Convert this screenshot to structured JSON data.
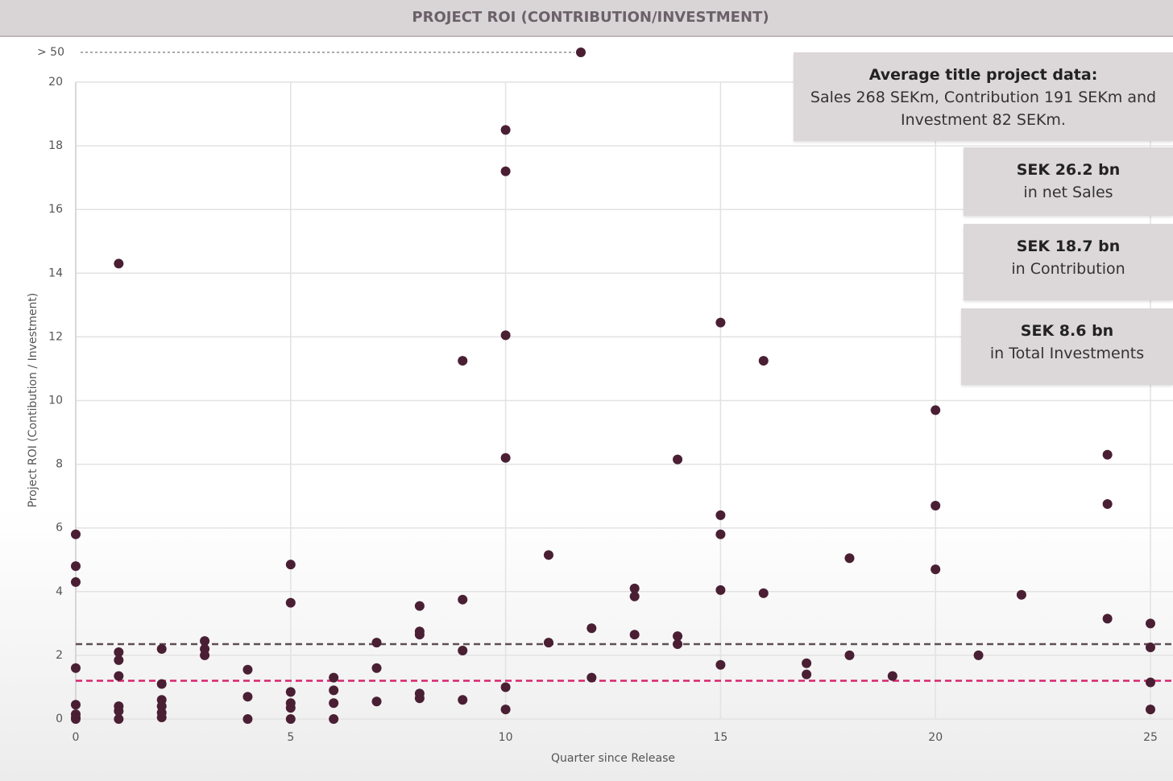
{
  "chart_data": {
    "type": "scatter",
    "title": "PROJECT ROI (CONTRIBUTION/INVESTMENT)",
    "x_label": "Quarter since Release",
    "y_label": "Project ROI (Contibution / Investment)",
    "color": "#4a1f33",
    "x": [
      0,
      0,
      0,
      0,
      0,
      0,
      0,
      0,
      1,
      1,
      1,
      1,
      1,
      1,
      1,
      2,
      2,
      2,
      2,
      2,
      2,
      3,
      3,
      3,
      4,
      4,
      4,
      5,
      5,
      5,
      5,
      5,
      5,
      6,
      6,
      6,
      6,
      7,
      7,
      7,
      8,
      8,
      8,
      8,
      8,
      9,
      9,
      9,
      9,
      10,
      10,
      10,
      10,
      10,
      10,
      11,
      11,
      12,
      12,
      13,
      13,
      13,
      14,
      14,
      14,
      15,
      15,
      15,
      15,
      15,
      16,
      16,
      17,
      17,
      18,
      18,
      19,
      20,
      20,
      20,
      21,
      22,
      24,
      24,
      24,
      25,
      25,
      25,
      25
    ],
    "values": [
      5.8,
      4.8,
      4.3,
      1.6,
      0.45,
      0.15,
      0.05,
      0,
      14.3,
      2.1,
      1.85,
      1.35,
      0.4,
      0.25,
      0,
      2.2,
      1.1,
      0.6,
      0.4,
      0.2,
      0.05,
      2.45,
      2.2,
      2.0,
      1.55,
      0.7,
      0,
      4.85,
      3.65,
      0.85,
      0.5,
      0.35,
      0,
      1.3,
      0.9,
      0.5,
      0,
      2.4,
      1.6,
      0.55,
      3.55,
      2.75,
      2.65,
      0.8,
      0.65,
      11.25,
      3.75,
      2.15,
      0.6,
      18.5,
      17.2,
      12.05,
      8.2,
      1.0,
      0.3,
      5.15,
      2.4,
      2.85,
      1.3,
      4.1,
      3.85,
      2.65,
      8.15,
      2.6,
      2.35,
      12.45,
      6.4,
      5.8,
      4.05,
      1.7,
      11.25,
      3.95,
      1.75,
      1.4,
      5.05,
      2.0,
      1.35,
      9.7,
      6.7,
      4.7,
      2.0,
      3.9,
      8.3,
      6.75,
      3.15,
      3.0,
      2.25,
      1.15,
      0.3
    ],
    "outlier": {
      "x": 11.75,
      "label": "> 50"
    },
    "reference_lines": [
      {
        "value": 2.35,
        "color": "#5e4f57"
      },
      {
        "value": 1.2,
        "color": "#d6246e"
      }
    ],
    "xlim": [
      0,
      25
    ],
    "xticks": [
      0,
      5,
      10,
      15,
      20,
      25
    ],
    "ylim": [
      0,
      20
    ],
    "yticks": [
      0,
      2,
      4,
      6,
      8,
      10,
      12,
      14,
      16,
      18,
      20
    ],
    "grid": true,
    "annotations": [
      {
        "title": "Average title project data:",
        "text": "Sales 268 SEKm, Contribution 191 SEKm and Investment 82 SEKm."
      },
      {
        "title": "SEK 26.2 bn",
        "text": "in net Sales"
      },
      {
        "title": "SEK 18.7 bn",
        "text": "in Contribution"
      },
      {
        "title": "SEK 8.6 bn",
        "text": "in Total Investments"
      }
    ]
  }
}
